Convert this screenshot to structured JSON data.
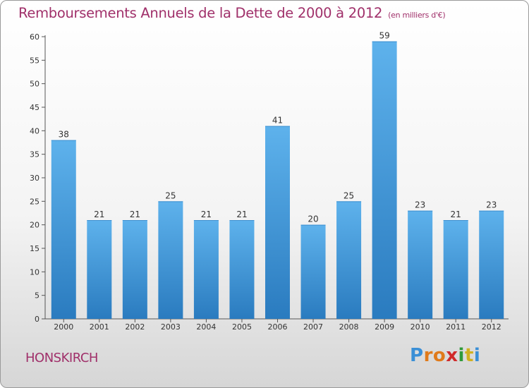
{
  "header": {
    "title": "Remboursements Annuels de la Dette de 2000 à 2012",
    "unit": "(en milliers d'€)"
  },
  "footer": {
    "commune": "HONSKIRCH",
    "logo_letters": [
      "P",
      "r",
      "o",
      "x",
      "i",
      "t",
      "i"
    ],
    "logo_colors": [
      "#3a8fd6",
      "#e07a1a",
      "#e07a1a",
      "#d02a2a",
      "#2f9a3a",
      "#d0b020",
      "#3a8fd6"
    ]
  },
  "colors": {
    "title": "#a0306a",
    "bar_top": "#5eb2ec",
    "bar_bottom": "#2a7bbf",
    "axis": "#555555",
    "grid": "#cccccc"
  },
  "chart_data": {
    "type": "bar",
    "categories": [
      "2000",
      "2001",
      "2002",
      "2003",
      "2004",
      "2005",
      "2006",
      "2007",
      "2008",
      "2009",
      "2010",
      "2011",
      "2012"
    ],
    "values": [
      38,
      21,
      21,
      25,
      21,
      21,
      41,
      20,
      25,
      59,
      23,
      21,
      23
    ],
    "data_labels": [
      "38",
      "21",
      "21",
      "25",
      "21",
      "21",
      "41",
      "20",
      "25",
      "59",
      "23",
      "21",
      "23"
    ],
    "yticks": [
      "0",
      "5",
      "10",
      "15",
      "20",
      "25",
      "30",
      "35",
      "40",
      "45",
      "50",
      "55",
      "60"
    ],
    "ylim": [
      0,
      60
    ],
    "grid": false
  }
}
